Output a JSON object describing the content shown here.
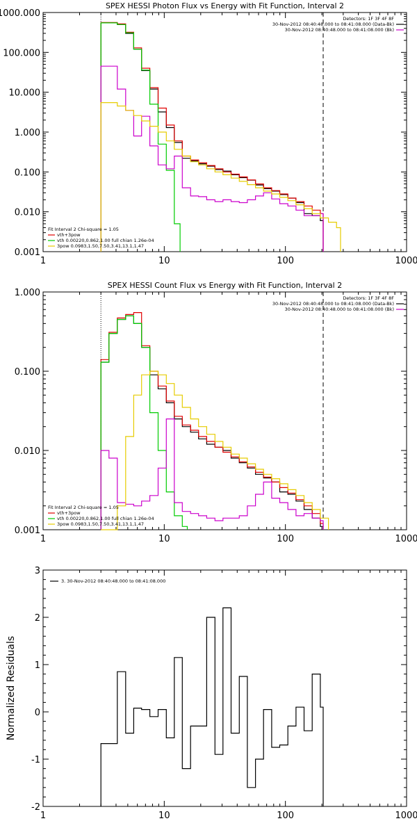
{
  "chart_data": [
    {
      "type": "line",
      "title": "SPEX HESSI Photon Flux vs Energy with Fit Function, Interval 2",
      "x_scale": "log",
      "y_scale": "log",
      "xlim": [
        1,
        1000
      ],
      "ylim": [
        0.001,
        1000
      ],
      "x_ticks": [
        1,
        10,
        100,
        1000
      ],
      "x_tick_labels": [
        "1",
        "10",
        "100",
        "1000"
      ],
      "y_ticks": [
        0.001,
        0.01,
        0.1,
        1,
        10,
        100,
        1000
      ],
      "y_tick_labels": [
        "0.001",
        "0.010",
        "0.100",
        "1.000",
        "10.000",
        "100.000",
        "1000.000"
      ],
      "vlines": [
        {
          "x": 3.0,
          "style": "dotted",
          "color": "#000000"
        },
        {
          "x": 205,
          "style": "dashed",
          "color": "#000000"
        }
      ],
      "legend_top_right": [
        {
          "text": "Detectors: 1F 3F 4F 8F",
          "color": "#000000"
        },
        {
          "text": "30-Nov-2012 08:40:48.000 to 08:41:08.000 (Data-Bk)",
          "color": "#000000"
        },
        {
          "text": "30-Nov-2012 08:40:48.000 to 08:41:08.000 (Bk)",
          "color": "#cc00cc"
        }
      ],
      "legend_bottom_left": [
        {
          "text": "Fit Interval 2   Chi-square = 1.05",
          "color": "#000000"
        },
        {
          "text": "vth+3pow",
          "color": "#e00000"
        },
        {
          "text": "vth 0.00220,0.862,1.00  full chian 1.26e-04",
          "color": "#00cc00"
        },
        {
          "text": "3pow 0.0983,1.50,7.50,3.41,13.1,1.47",
          "color": "#e6cc00"
        }
      ],
      "series": [
        {
          "color": "#000000",
          "x": [
            3.0,
            3.5,
            4.1,
            4.8,
            5.6,
            6.5,
            7.6,
            8.9,
            10.4,
            12.1,
            14.1,
            16.5,
            19.2,
            22.4,
            26.2,
            30.5,
            35.6,
            41.6,
            48.5,
            56.6,
            66.0,
            77.0,
            89.8,
            104.8,
            122.3,
            142.6,
            166.4,
            194.1,
            205
          ],
          "values": [
            550,
            550,
            500,
            300,
            120,
            35,
            12,
            3.2,
            1.3,
            0.55,
            0.22,
            0.19,
            0.16,
            0.14,
            0.115,
            0.105,
            0.085,
            0.072,
            0.062,
            0.047,
            0.038,
            0.033,
            0.027,
            0.022,
            0.017,
            0.009,
            0.008,
            0.006,
            0.006
          ]
        },
        {
          "color": "#e00000",
          "x": [
            3.0,
            3.5,
            4.1,
            4.8,
            5.6,
            6.5,
            7.6,
            8.9,
            10.4,
            12.1,
            14.1,
            16.5,
            19.2,
            22.4,
            26.2,
            30.5,
            35.6,
            41.6,
            48.5,
            56.6,
            66.0,
            77.0,
            89.8,
            104.8,
            122.3,
            142.6,
            166.4,
            194.1,
            205
          ],
          "values": [
            560,
            560,
            520,
            320,
            130,
            40,
            13,
            4.0,
            1.5,
            0.6,
            0.25,
            0.2,
            0.17,
            0.145,
            0.12,
            0.1,
            0.088,
            0.075,
            0.063,
            0.05,
            0.04,
            0.034,
            0.028,
            0.022,
            0.018,
            0.014,
            0.011,
            0.009,
            0.009
          ]
        },
        {
          "color": "#00cc00",
          "x": [
            3.0,
            3.5,
            4.1,
            4.8,
            5.6,
            6.5,
            7.6,
            8.9,
            10.4,
            12.1,
            13.5
          ],
          "values": [
            550,
            550,
            500,
            310,
            120,
            36,
            5.0,
            0.5,
            0.11,
            0.005,
            0.001
          ]
        },
        {
          "color": "#cc00cc",
          "x": [
            3.0,
            3.5,
            4.1,
            4.8,
            5.6,
            6.5,
            7.6,
            8.9,
            10.4,
            12.1,
            14.1,
            16.5,
            19.2,
            22.4,
            26.2,
            30.5,
            35.6,
            41.6,
            48.5,
            56.6,
            66.0,
            77.0,
            89.8,
            104.8,
            122.3,
            142.6,
            166.4,
            194.1,
            205
          ],
          "values": [
            45,
            45,
            12,
            3.5,
            0.8,
            2.5,
            0.45,
            0.15,
            0.12,
            0.25,
            0.04,
            0.025,
            0.024,
            0.02,
            0.018,
            0.02,
            0.018,
            0.017,
            0.02,
            0.025,
            0.03,
            0.021,
            0.016,
            0.014,
            0.011,
            0.008,
            0.008,
            0.009,
            0.001
          ]
        },
        {
          "color": "#e6cc00",
          "x": [
            3.0,
            3.5,
            4.1,
            4.8,
            5.6,
            6.5,
            7.6,
            8.9,
            10.4,
            12.1,
            14.1,
            16.5,
            19.2,
            22.4,
            26.2,
            30.5,
            35.6,
            41.6,
            48.5,
            56.6,
            66.0,
            77.0,
            89.8,
            104.8,
            122.3,
            142.6,
            166.4,
            194.1,
            226.5,
            264.2,
            285
          ],
          "values": [
            5.5,
            5.5,
            4.5,
            3.5,
            2.6,
            1.9,
            1.4,
            1.0,
            0.6,
            0.37,
            0.25,
            0.18,
            0.15,
            0.12,
            0.1,
            0.085,
            0.07,
            0.058,
            0.048,
            0.04,
            0.033,
            0.028,
            0.023,
            0.019,
            0.015,
            0.012,
            0.009,
            0.007,
            0.0055,
            0.004,
            0.001
          ]
        }
      ]
    },
    {
      "type": "line",
      "title": "SPEX HESSI Count Flux vs Energy with Fit Function, Interval 2",
      "x_scale": "log",
      "y_scale": "log",
      "xlim": [
        1,
        1000
      ],
      "ylim": [
        0.001,
        1
      ],
      "x_ticks": [
        1,
        10,
        100,
        1000
      ],
      "x_tick_labels": [
        "1",
        "10",
        "100",
        "1000"
      ],
      "y_ticks": [
        0.001,
        0.01,
        0.1,
        1
      ],
      "y_tick_labels": [
        "0.001",
        "0.010",
        "0.100",
        "1.000"
      ],
      "vlines": [
        {
          "x": 3.0,
          "style": "dotted",
          "color": "#000000"
        },
        {
          "x": 205,
          "style": "dashed",
          "color": "#000000"
        }
      ],
      "legend_top_right": [
        {
          "text": "Detectors: 1F 3F 4F 8F",
          "color": "#000000"
        },
        {
          "text": "30-Nov-2012 08:40:48.000 to 08:41:08.000 (Data-Bk)",
          "color": "#000000"
        },
        {
          "text": "30-Nov-2012 08:40:48.000 to 08:41:08.000 (Bk)",
          "color": "#cc00cc"
        }
      ],
      "legend_bottom_left": [
        {
          "text": "Fit Interval 2   Chi-square = 1.05",
          "color": "#000000"
        },
        {
          "text": "vth+3pow",
          "color": "#e00000"
        },
        {
          "text": "vth 0.00220,0.862,1.00  full chian 1.26e-04",
          "color": "#00cc00"
        },
        {
          "text": "3pow 0.0983,1.50,7.50,3.41,13.1,1.47",
          "color": "#e6cc00"
        }
      ],
      "series": [
        {
          "color": "#000000",
          "x": [
            3.0,
            3.5,
            4.1,
            4.8,
            5.6,
            6.5,
            7.6,
            8.9,
            10.4,
            12.1,
            14.1,
            16.5,
            19.2,
            22.4,
            26.2,
            30.5,
            35.6,
            41.6,
            48.5,
            56.6,
            66.0,
            77.0,
            89.8,
            104.8,
            122.3,
            142.6,
            166.4,
            194.1,
            205
          ],
          "values": [
            0.13,
            0.3,
            0.45,
            0.5,
            0.4,
            0.2,
            0.09,
            0.06,
            0.04,
            0.025,
            0.02,
            0.017,
            0.014,
            0.012,
            0.011,
            0.01,
            0.008,
            0.007,
            0.006,
            0.005,
            0.0045,
            0.004,
            0.003,
            0.0028,
            0.0023,
            0.0018,
            0.0014,
            0.0011,
            0.001
          ]
        },
        {
          "color": "#e00000",
          "x": [
            3.0,
            3.5,
            4.1,
            4.8,
            5.6,
            6.5,
            7.6,
            8.9,
            10.4,
            12.1,
            14.1,
            16.5,
            19.2,
            22.4,
            26.2,
            30.5,
            35.6,
            41.6,
            48.5,
            56.6,
            66.0,
            77.0,
            89.8,
            104.8,
            122.3,
            142.6,
            166.4,
            194.1,
            205
          ],
          "values": [
            0.14,
            0.31,
            0.47,
            0.52,
            0.55,
            0.21,
            0.1,
            0.065,
            0.042,
            0.027,
            0.021,
            0.018,
            0.015,
            0.013,
            0.011,
            0.0095,
            0.0083,
            0.0072,
            0.0062,
            0.0053,
            0.0046,
            0.004,
            0.0034,
            0.0029,
            0.0024,
            0.002,
            0.0016,
            0.0012,
            0.001
          ]
        },
        {
          "color": "#00cc00",
          "x": [
            3.0,
            3.5,
            4.1,
            4.8,
            5.6,
            6.5,
            7.6,
            8.9,
            10.4,
            12.1,
            14.1,
            15.5
          ],
          "values": [
            0.13,
            0.3,
            0.45,
            0.5,
            0.4,
            0.2,
            0.03,
            0.01,
            0.003,
            0.0015,
            0.0011,
            0.001
          ]
        },
        {
          "color": "#cc00cc",
          "x": [
            3.0,
            3.5,
            4.1,
            4.8,
            5.6,
            6.5,
            7.6,
            8.9,
            10.4,
            12.1,
            14.1,
            16.5,
            19.2,
            22.4,
            26.2,
            30.5,
            35.6,
            41.6,
            48.5,
            56.6,
            66.0,
            77.0,
            89.8,
            104.8,
            122.3,
            142.6,
            166.4,
            194.1,
            205
          ],
          "values": [
            0.01,
            0.008,
            0.0022,
            0.0021,
            0.002,
            0.0023,
            0.0027,
            0.006,
            0.025,
            0.0022,
            0.0017,
            0.0016,
            0.0015,
            0.0014,
            0.0013,
            0.0014,
            0.0014,
            0.0015,
            0.002,
            0.0028,
            0.004,
            0.0025,
            0.0022,
            0.0018,
            0.0015,
            0.0016,
            0.0014,
            0.0013,
            0.001
          ]
        },
        {
          "color": "#e6cc00",
          "x": [
            3.0,
            3.5,
            4.1,
            4.8,
            5.6,
            6.5,
            7.6,
            8.9,
            10.4,
            12.1,
            14.1,
            16.5,
            19.2,
            22.4,
            26.2,
            30.5,
            35.6,
            41.6,
            48.5,
            56.6,
            66.0,
            77.0,
            89.8,
            104.8,
            122.3,
            142.6,
            166.4,
            194.1,
            226.5
          ],
          "values": [
            0.001,
            0.001,
            0.002,
            0.015,
            0.05,
            0.09,
            0.1,
            0.09,
            0.07,
            0.05,
            0.035,
            0.025,
            0.02,
            0.016,
            0.013,
            0.011,
            0.009,
            0.008,
            0.0068,
            0.0058,
            0.005,
            0.0044,
            0.0038,
            0.0032,
            0.0027,
            0.0022,
            0.0018,
            0.0014,
            0.001
          ]
        }
      ]
    },
    {
      "type": "line",
      "title": "",
      "ylabel": "Normalized Residuals",
      "x_scale": "log",
      "y_scale": "linear",
      "xlim": [
        1,
        1000
      ],
      "ylim": [
        -2,
        3
      ],
      "x_ticks": [
        1,
        10,
        100,
        1000
      ],
      "x_tick_labels": [
        "1",
        "10",
        "100",
        "1000"
      ],
      "y_ticks": [
        -2,
        -1,
        0,
        1,
        2,
        3
      ],
      "y_tick_labels": [
        "-2",
        "-1",
        "0",
        "1",
        "2",
        "3"
      ],
      "legend_top_left": [
        {
          "text": "3. 30-Nov-2012 08:40:48.000 to 08:41:08.000",
          "color": "#000000"
        }
      ],
      "series": [
        {
          "color": "#000000",
          "x": [
            3.0,
            3.5,
            4.1,
            4.8,
            5.6,
            6.5,
            7.6,
            8.9,
            10.4,
            12.1,
            14.1,
            16.5,
            19.2,
            22.4,
            26.2,
            30.5,
            35.6,
            41.6,
            48.5,
            56.6,
            66.0,
            77.0,
            89.8,
            104.8,
            122.3,
            142.6,
            166.4,
            194.1,
            205
          ],
          "values": [
            -0.67,
            -0.67,
            0.85,
            -0.45,
            0.08,
            0.05,
            -0.1,
            0.05,
            -0.55,
            1.15,
            -1.2,
            -0.3,
            -0.3,
            2.0,
            -0.9,
            2.2,
            -0.45,
            0.75,
            -1.6,
            -1.0,
            0.05,
            -0.75,
            -0.7,
            -0.3,
            0.1,
            -0.4,
            0.8,
            0.1,
            0.1
          ]
        }
      ]
    }
  ]
}
